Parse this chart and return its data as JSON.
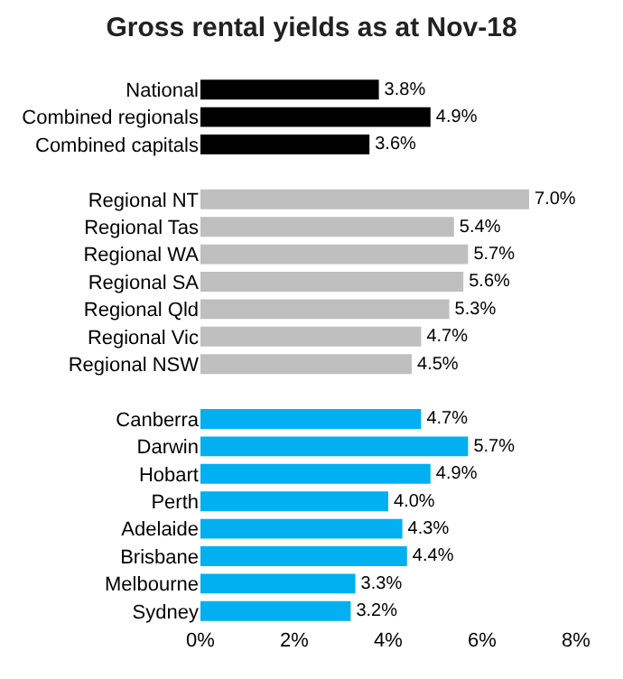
{
  "chart_data": {
    "type": "bar",
    "orientation": "horizontal",
    "title": "Gross rental yields as at Nov-18",
    "categories": [
      "National",
      "Combined regionals",
      "Combined capitals",
      null,
      "Regional NT",
      "Regional Tas",
      "Regional WA",
      "Regional SA",
      "Regional Qld",
      "Regional Vic",
      "Regional NSW",
      null,
      "Canberra",
      "Darwin",
      "Hobart",
      "Perth",
      "Adelaide",
      "Brisbane",
      "Melbourne",
      "Sydney"
    ],
    "values": [
      3.8,
      4.9,
      3.6,
      null,
      7.0,
      5.4,
      5.7,
      5.6,
      5.3,
      4.7,
      4.5,
      null,
      4.7,
      5.7,
      4.9,
      4.0,
      4.3,
      4.4,
      3.3,
      3.2
    ],
    "value_labels": [
      "3.8%",
      "4.9%",
      "3.6%",
      null,
      "7.0%",
      "5.4%",
      "5.7%",
      "5.6%",
      "5.3%",
      "4.7%",
      "4.5%",
      null,
      "4.7%",
      "5.7%",
      "4.9%",
      "4.0%",
      "4.3%",
      "4.4%",
      "3.3%",
      "3.2%"
    ],
    "colors": [
      "#000000",
      "#000000",
      "#000000",
      null,
      "#bfbfbf",
      "#bfbfbf",
      "#bfbfbf",
      "#bfbfbf",
      "#bfbfbf",
      "#bfbfbf",
      "#bfbfbf",
      null,
      "#00b0f0",
      "#00b0f0",
      "#00b0f0",
      "#00b0f0",
      "#00b0f0",
      "#00b0f0",
      "#00b0f0",
      "#00b0f0"
    ],
    "xlim": [
      0,
      8
    ],
    "xticks": [
      {
        "value": 0,
        "label": "0%"
      },
      {
        "value": 2,
        "label": "2%"
      },
      {
        "value": 4,
        "label": "4%"
      },
      {
        "value": 6,
        "label": "6%"
      },
      {
        "value": 8,
        "label": "8%"
      }
    ],
    "grid": false
  }
}
